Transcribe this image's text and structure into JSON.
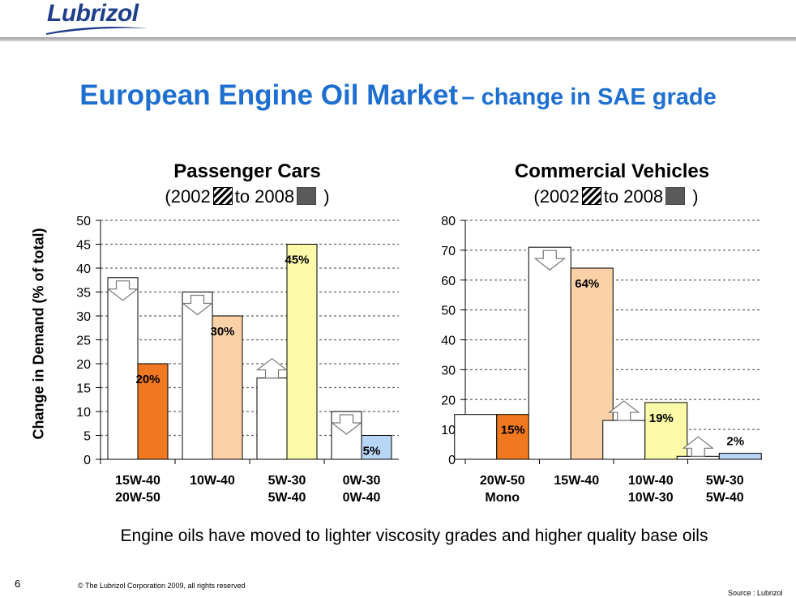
{
  "brand": {
    "logo": "Lubrizol"
  },
  "page": {
    "title_main": "European Engine Oil Market",
    "title_sub": "– change in SAE grade",
    "footer_note": "Engine oils have moved to lighter viscosity grades and higher quality base oils",
    "page_number": "6",
    "copyright": "© The Lubrizol Corporation 2009, all rights reserved",
    "source": "Source : Lubrizol"
  },
  "colors": {
    "title": "#1f6fd0",
    "bar_2002": "#ffffff"
  },
  "chart_data": [
    {
      "type": "bar",
      "title": "Passenger Cars",
      "legend": {
        "open": "(2002",
        "mid": "to 2008",
        "close": ")"
      },
      "ylabel": "Change in Demand (% of total)",
      "ylim": [
        0,
        50
      ],
      "yticks": [
        0,
        5,
        10,
        15,
        20,
        25,
        30,
        35,
        40,
        45,
        50
      ],
      "categories": [
        [
          "15W-40",
          "20W-50"
        ],
        [
          "10W-40"
        ],
        [
          "5W-30",
          "5W-40"
        ],
        [
          "0W-30",
          "0W-40"
        ]
      ],
      "series": [
        {
          "name": "2002",
          "values": [
            38,
            35,
            17,
            10
          ]
        },
        {
          "name": "2008",
          "values": [
            20,
            30,
            45,
            5
          ]
        }
      ],
      "labels_2008": [
        "20%",
        "30%",
        "45%",
        "5%"
      ],
      "colors_2008": [
        "#f07820",
        "#fbd2a8",
        "#fafaa8",
        "#b8d6f8"
      ],
      "trend": [
        "down",
        "down",
        "up",
        "down"
      ]
    },
    {
      "type": "bar",
      "title": "Commercial Vehicles",
      "legend": {
        "open": "(2002",
        "mid": "to 2008",
        "close": ")"
      },
      "ylabel": "",
      "ylim": [
        0,
        80
      ],
      "yticks": [
        0,
        10,
        20,
        30,
        40,
        50,
        60,
        70,
        80
      ],
      "categories": [
        [
          "20W-50",
          "Mono"
        ],
        [
          "15W-40"
        ],
        [
          "10W-40",
          "10W-30"
        ],
        [
          "5W-30",
          "5W-40"
        ]
      ],
      "series": [
        {
          "name": "2002",
          "values": [
            15,
            71,
            13,
            1
          ]
        },
        {
          "name": "2008",
          "values": [
            15,
            64,
            19,
            2
          ]
        }
      ],
      "labels_2008": [
        "15%",
        "64%",
        "19%",
        "2%"
      ],
      "colors_2008": [
        "#f07820",
        "#fbd2a8",
        "#fafaa8",
        "#b8d6f8"
      ],
      "trend": [
        "none",
        "down",
        "up",
        "up"
      ]
    }
  ]
}
